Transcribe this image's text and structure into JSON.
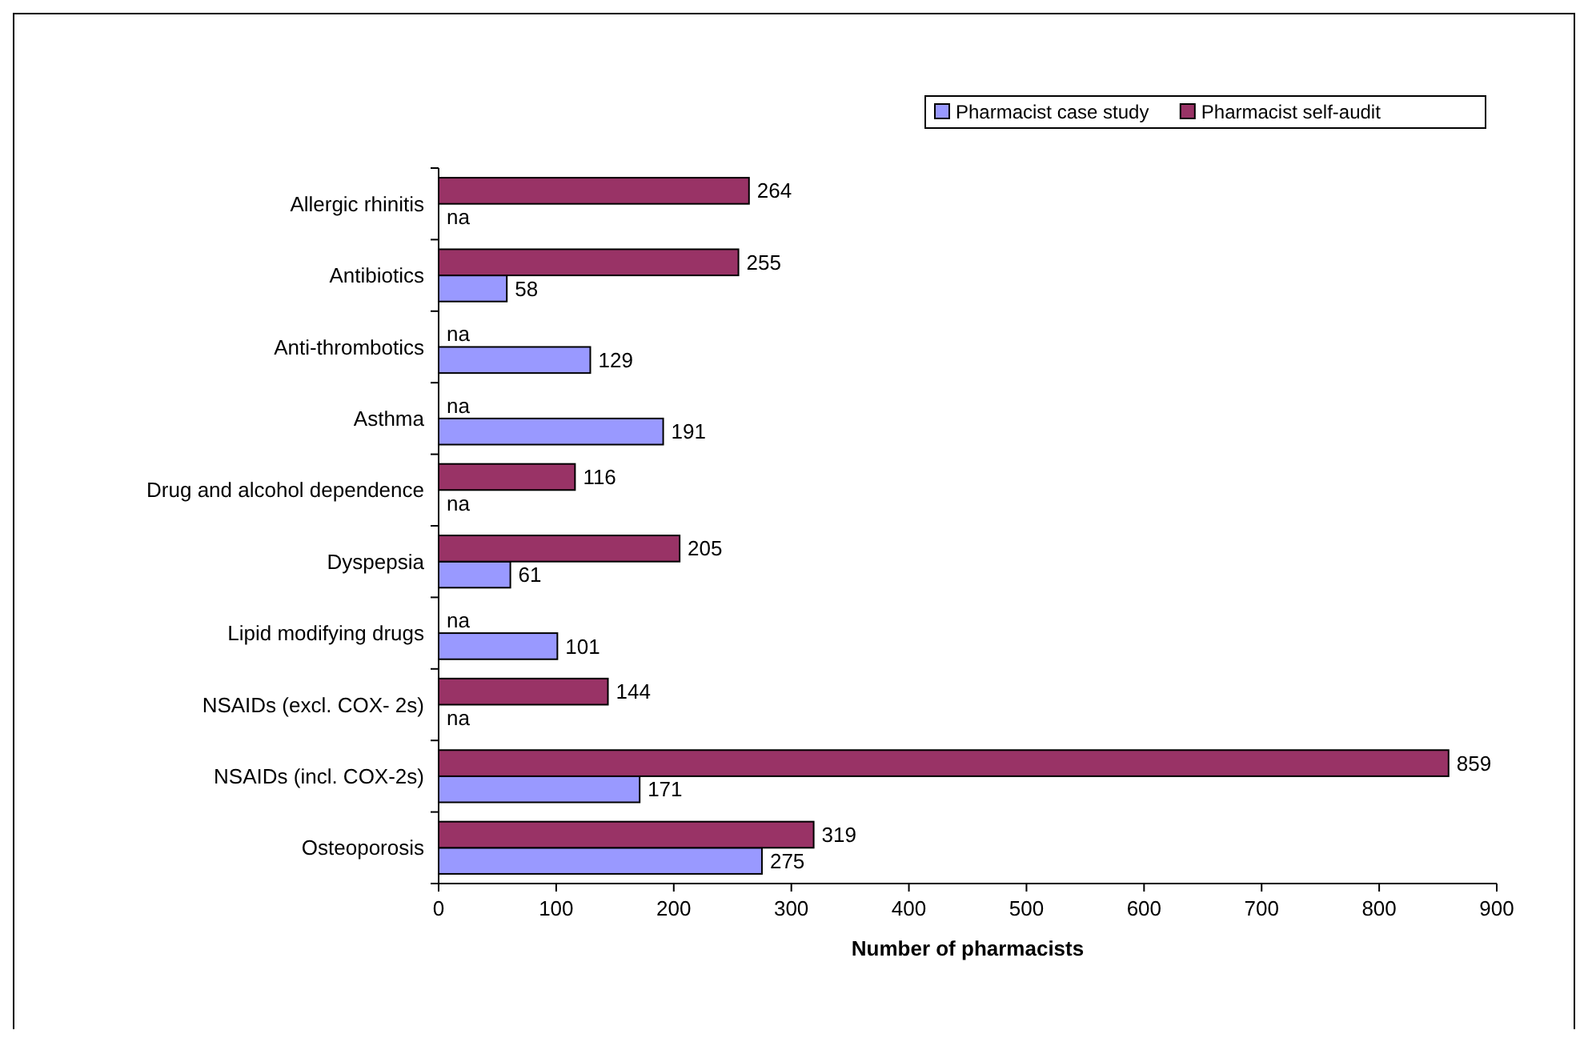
{
  "chart_data": {
    "type": "bar",
    "orientation": "horizontal",
    "xlabel": "Number of pharmacists",
    "categories": [
      "Allergic rhinitis",
      "Antibiotics",
      "Anti-thrombotics",
      "Asthma",
      "Drug and alcohol dependence",
      "Dyspepsia",
      "Lipid modifying drugs",
      "NSAIDs (excl. COX- 2s)",
      "NSAIDs (incl. COX-2s)",
      "Osteoporosis"
    ],
    "series": [
      {
        "name": "Pharmacist case study",
        "color": "#9999ff",
        "values": [
          null,
          58,
          129,
          191,
          null,
          61,
          101,
          null,
          171,
          275
        ],
        "value_labels": [
          "na",
          "58",
          "129",
          "191",
          "na",
          "61",
          "101",
          "na",
          "171",
          "275"
        ]
      },
      {
        "name": "Pharmacist self-audit",
        "color": "#993366",
        "values": [
          264,
          255,
          null,
          null,
          116,
          205,
          null,
          144,
          859,
          319
        ],
        "value_labels": [
          "264",
          "255",
          "na",
          "na",
          "116",
          "205",
          "na",
          "144",
          "859",
          "319"
        ]
      }
    ],
    "xlim": [
      0,
      900
    ],
    "xticks": [
      0,
      100,
      200,
      300,
      400,
      500,
      600,
      700,
      800,
      900
    ],
    "legend": "top right",
    "grid": false
  }
}
